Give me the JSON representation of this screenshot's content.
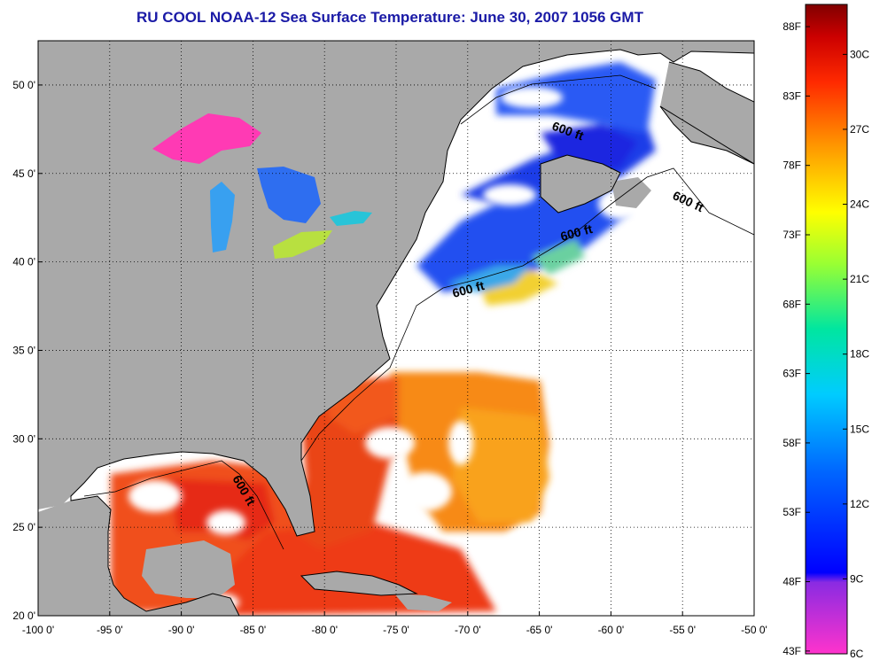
{
  "title": "RU COOL  NOAA-12  Sea Surface Temperature:  June 30, 2007 1056 GMT",
  "map": {
    "lon_range": [
      -100,
      -50
    ],
    "lat_range": [
      20,
      52.5
    ],
    "lon_ticks": [
      "-100 0'",
      "-95 0'",
      "-90 0'",
      "-85 0'",
      "-80 0'",
      "-75 0'",
      "-70 0'",
      "-65 0'",
      "-60 0'",
      "-55 0'",
      "-50 0'"
    ],
    "lat_ticks": [
      "50 0'",
      "45 0'",
      "40 0'",
      "35 0'",
      "30 0'",
      "25 0'",
      "20 0'"
    ],
    "isobath_labels": [
      "600 ft",
      "600 ft",
      "600 ft",
      "600 ft",
      "600 ft"
    ],
    "colors": {
      "land": "#a9a9a9",
      "no_data": "#ffffff"
    }
  },
  "colorbar": {
    "fahrenheit_labels": [
      "88F",
      "83F",
      "78F",
      "73F",
      "68F",
      "63F",
      "58F",
      "53F",
      "48F",
      "43F"
    ],
    "celsius_labels": [
      "30C",
      "27C",
      "24C",
      "21C",
      "18C",
      "15C",
      "12C",
      "9C",
      "6C"
    ],
    "range_celsius": [
      6,
      32
    ]
  }
}
